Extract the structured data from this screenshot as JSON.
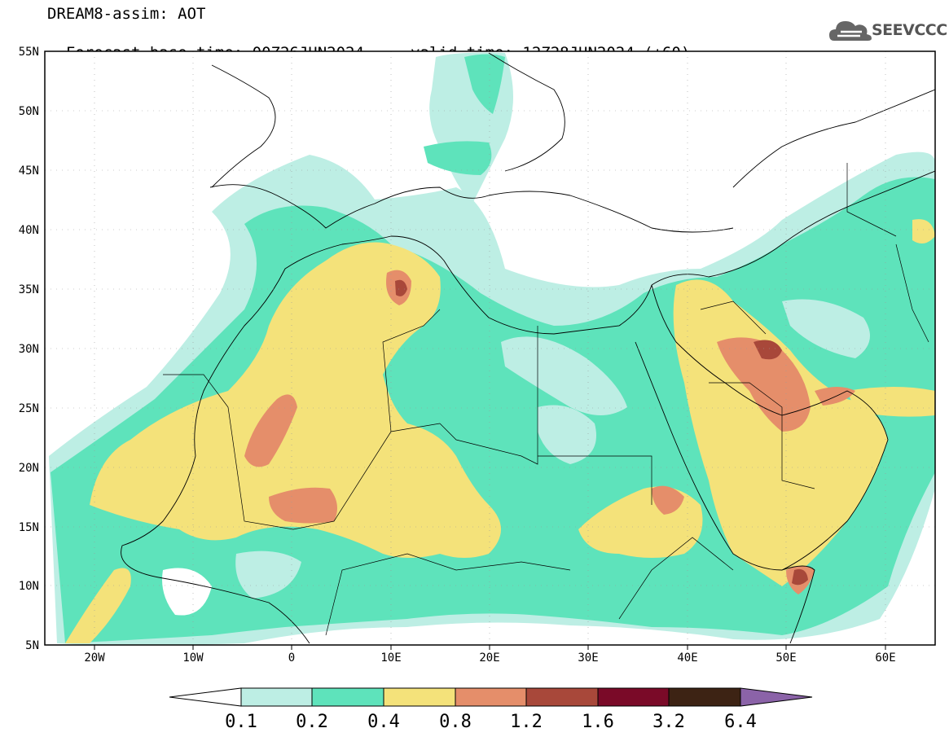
{
  "title": {
    "line1": "DREAM8-assim: AOT",
    "base_label": "Forecast base time: 00Z26JUN2024",
    "valid_label": "valid time: 12Z28JUN2024 (+60)"
  },
  "logo": {
    "text": "SEEVCCC",
    "icon": "cloud-icon"
  },
  "axes": {
    "lat_labels": [
      "55N",
      "50N",
      "45N",
      "40N",
      "35N",
      "30N",
      "25N",
      "20N",
      "15N",
      "10N",
      "5N"
    ],
    "lon_labels": [
      "20W",
      "10W",
      "0",
      "10E",
      "20E",
      "30E",
      "40E",
      "50E",
      "60E"
    ],
    "lon_range": [
      -25,
      65
    ],
    "lat_range": [
      5,
      55
    ]
  },
  "legend": {
    "labels": [
      "0.1",
      "0.2",
      "0.4",
      "0.8",
      "1.2",
      "1.6",
      "3.2",
      "6.4"
    ],
    "colors": [
      "#ffffff",
      "#bdeee4",
      "#5ee3bb",
      "#f4e27a",
      "#e58e6a",
      "#a8483a",
      "#7a0a28",
      "#3d2314",
      "#8b63a8"
    ]
  },
  "colors": {
    "low": "#bdeee4",
    "medium": "#5ee3bb",
    "high": "#f4e27a",
    "very_high": "#e58e6a",
    "extreme": "#a8483a"
  }
}
